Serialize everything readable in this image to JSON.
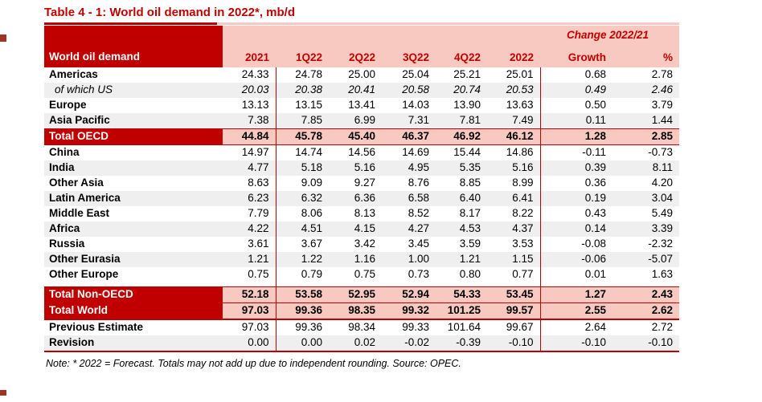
{
  "title": "Table 4 - 1: World oil demand in 2022*, mb/d",
  "colors": {
    "dark_red": "#C00000",
    "header_pink": "#F8C9C0",
    "alt_row_gray": "#EFEFEF"
  },
  "header": {
    "label": "World oil demand",
    "change_label": "Change 2022/21",
    "columns": [
      "2021",
      "1Q22",
      "2Q22",
      "3Q22",
      "4Q22",
      "2022",
      "Growth",
      "%"
    ]
  },
  "rows": [
    {
      "label": "Americas",
      "style": "normal",
      "alt": false,
      "values": [
        "24.33",
        "24.78",
        "25.00",
        "25.04",
        "25.21",
        "25.01",
        "0.68",
        "2.78"
      ]
    },
    {
      "label": "of which US",
      "style": "italic",
      "alt": true,
      "values": [
        "20.03",
        "20.38",
        "20.41",
        "20.58",
        "20.74",
        "20.53",
        "0.49",
        "2.46"
      ]
    },
    {
      "label": "Europe",
      "style": "normal",
      "alt": false,
      "values": [
        "13.13",
        "13.15",
        "13.41",
        "14.03",
        "13.90",
        "13.63",
        "0.50",
        "3.79"
      ]
    },
    {
      "label": "Asia Pacific",
      "style": "normal",
      "alt": true,
      "values": [
        "7.38",
        "7.85",
        "6.99",
        "7.31",
        "7.81",
        "7.49",
        "0.11",
        "1.44"
      ]
    },
    {
      "label": "Total OECD",
      "style": "total",
      "alt": false,
      "values": [
        "44.84",
        "45.78",
        "45.40",
        "46.37",
        "46.92",
        "46.12",
        "1.28",
        "2.85"
      ]
    },
    {
      "label": "China",
      "style": "normal",
      "alt": false,
      "values": [
        "14.97",
        "14.74",
        "14.56",
        "14.69",
        "15.44",
        "14.86",
        "-0.11",
        "-0.73"
      ]
    },
    {
      "label": "India",
      "style": "normal",
      "alt": true,
      "values": [
        "4.77",
        "5.18",
        "5.16",
        "4.95",
        "5.35",
        "5.16",
        "0.39",
        "8.11"
      ]
    },
    {
      "label": "Other Asia",
      "style": "normal",
      "alt": false,
      "values": [
        "8.63",
        "9.09",
        "9.27",
        "8.76",
        "8.85",
        "8.99",
        "0.36",
        "4.20"
      ]
    },
    {
      "label": "Latin America",
      "style": "normal",
      "alt": true,
      "values": [
        "6.23",
        "6.32",
        "6.36",
        "6.58",
        "6.40",
        "6.41",
        "0.19",
        "3.04"
      ]
    },
    {
      "label": "Middle East",
      "style": "normal",
      "alt": false,
      "values": [
        "7.79",
        "8.06",
        "8.13",
        "8.52",
        "8.17",
        "8.22",
        "0.43",
        "5.49"
      ]
    },
    {
      "label": "Africa",
      "style": "normal",
      "alt": true,
      "values": [
        "4.22",
        "4.51",
        "4.15",
        "4.27",
        "4.53",
        "4.37",
        "0.14",
        "3.39"
      ]
    },
    {
      "label": "Russia",
      "style": "normal",
      "alt": false,
      "values": [
        "3.61",
        "3.67",
        "3.42",
        "3.45",
        "3.59",
        "3.53",
        "-0.08",
        "-2.32"
      ]
    },
    {
      "label": "Other Eurasia",
      "style": "normal",
      "alt": true,
      "values": [
        "1.21",
        "1.22",
        "1.16",
        "1.00",
        "1.21",
        "1.15",
        "-0.06",
        "-5.07"
      ]
    },
    {
      "label": "Other Europe",
      "style": "normal",
      "alt": false,
      "values": [
        "0.75",
        "0.79",
        "0.75",
        "0.73",
        "0.80",
        "0.77",
        "0.01",
        "1.63"
      ]
    },
    {
      "label": "Total Non-OECD",
      "style": "total",
      "alt": false,
      "gap_before": true,
      "values": [
        "52.18",
        "53.58",
        "52.95",
        "52.94",
        "54.33",
        "53.45",
        "1.27",
        "2.43"
      ]
    },
    {
      "label": "Total World",
      "style": "total",
      "alt": false,
      "world": true,
      "values": [
        "97.03",
        "99.36",
        "98.35",
        "99.32",
        "101.25",
        "99.57",
        "2.55",
        "2.62"
      ]
    },
    {
      "label": "Previous Estimate",
      "style": "normal",
      "alt": false,
      "values": [
        "97.03",
        "99.36",
        "98.34",
        "99.33",
        "101.64",
        "99.67",
        "2.64",
        "2.72"
      ]
    },
    {
      "label": "Revision",
      "style": "normal",
      "alt": true,
      "last": true,
      "values": [
        "0.00",
        "0.00",
        "0.02",
        "-0.02",
        "-0.39",
        "-0.10",
        "-0.10",
        "-0.10"
      ]
    }
  ],
  "note": "Note: * 2022 = Forecast. Totals may not add up due to independent rounding. Source: OPEC."
}
